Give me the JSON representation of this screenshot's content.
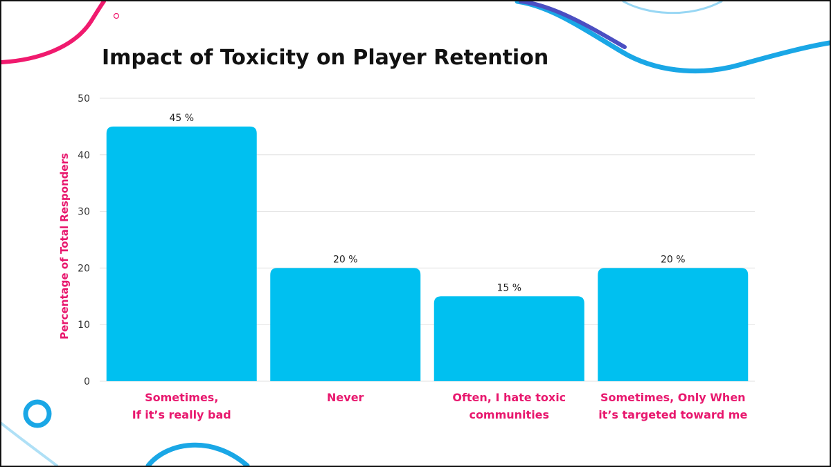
{
  "colors": {
    "bar": "#00C0F0",
    "category_label": "#E8186E",
    "axis_label": "#E8186E",
    "grid": "#E0E0E0",
    "decor_pink": "#F01A6E",
    "decor_blue": "#1AA7E6",
    "decor_navy": "#4B4FC2"
  },
  "chart_data": {
    "type": "bar",
    "title": "Impact of Toxicity on Player Retention",
    "ylabel": "Percentage of Total Responders",
    "xlabel": "",
    "ylim": [
      0,
      50
    ],
    "yticks": [
      0,
      10,
      20,
      30,
      40,
      50
    ],
    "grid": true,
    "categories": [
      [
        "Sometimes,",
        "If it’s really bad"
      ],
      [
        "Never"
      ],
      [
        "Often, I hate toxic",
        "communities"
      ],
      [
        "Sometimes, Only When",
        "it’s targeted toward me"
      ]
    ],
    "values": [
      45,
      20,
      15,
      20
    ],
    "data_labels": [
      "45 %",
      "20 %",
      "15 %",
      "20 %"
    ]
  }
}
